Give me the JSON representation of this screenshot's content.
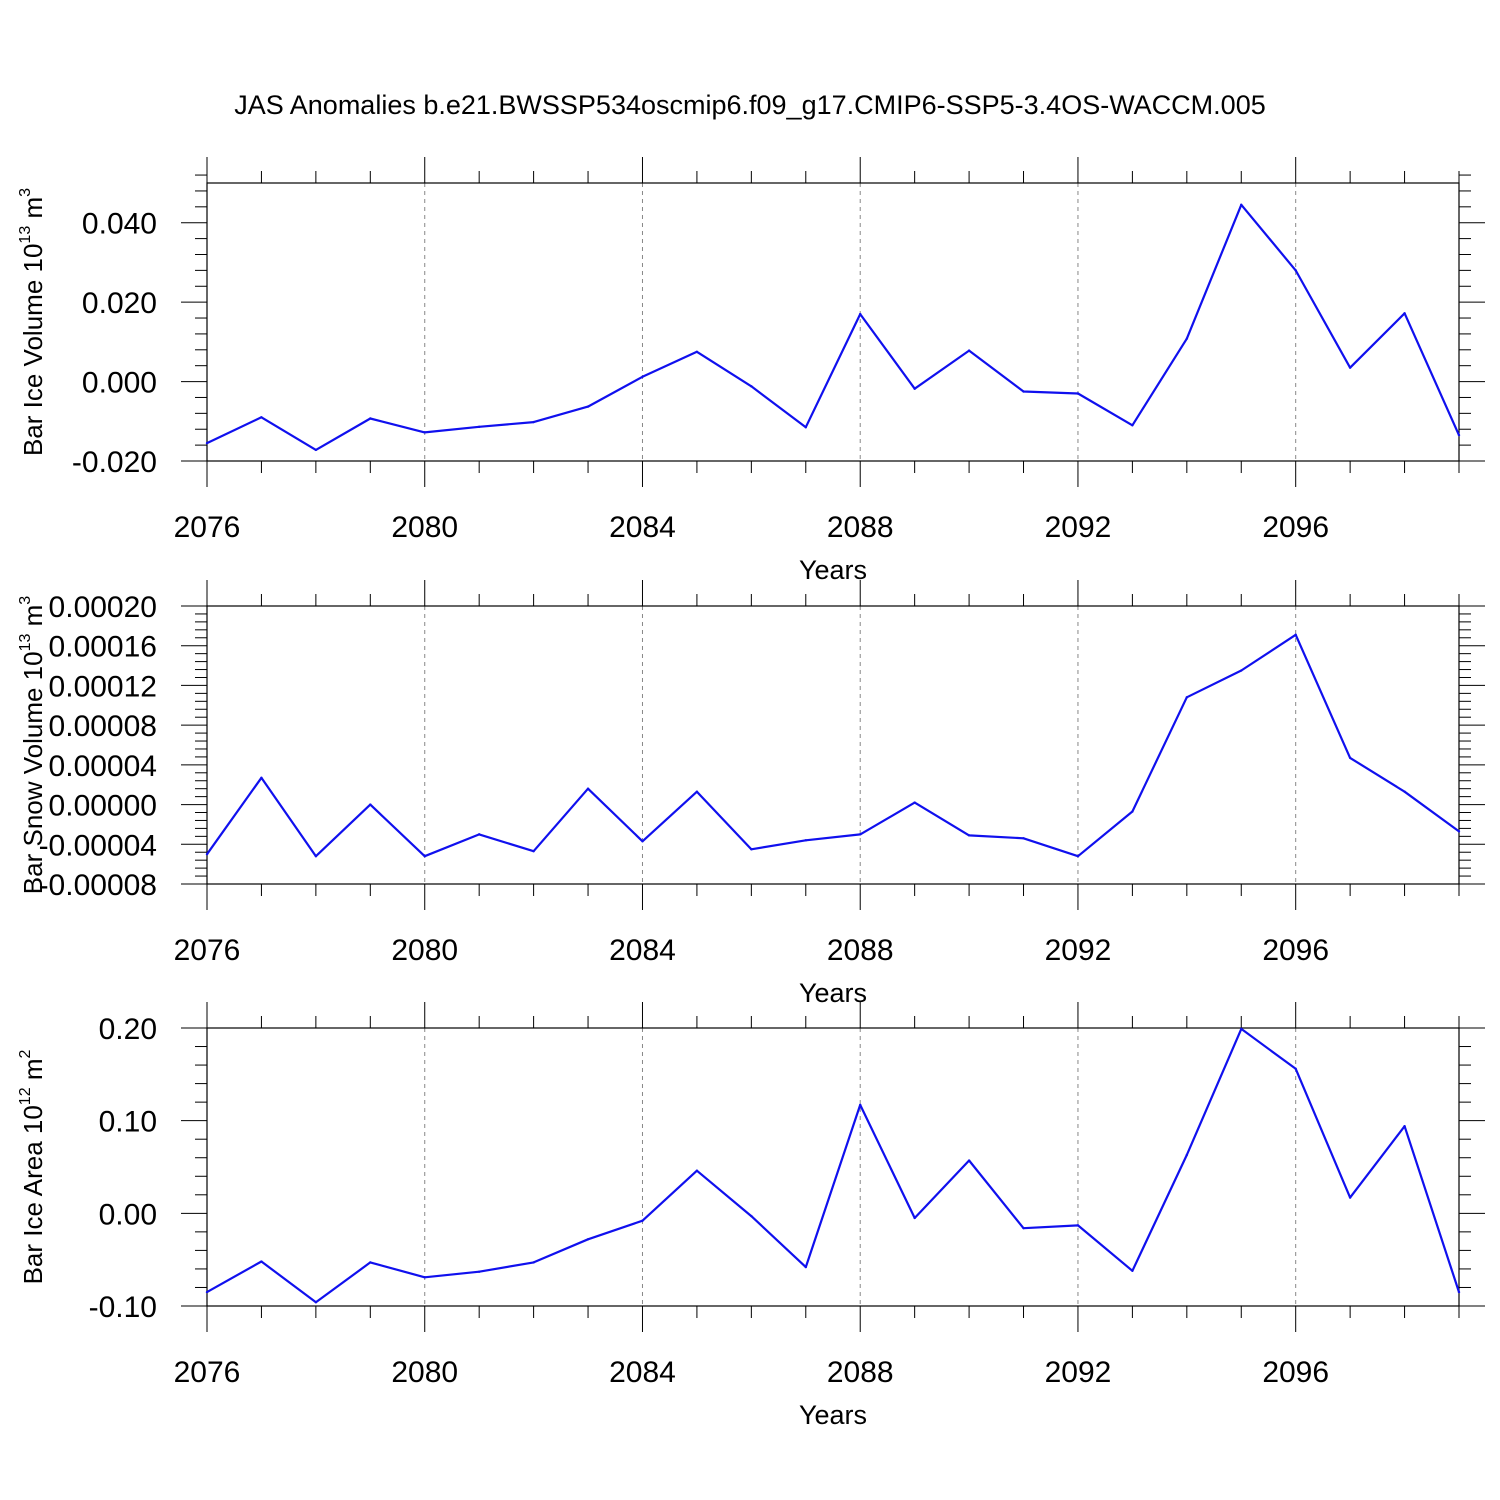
{
  "chart_data": {
    "title": "JAS Anomalies b.e21.BWSSP534oscmip6.f09_g17.CMIP6-SSP5-3.4OS-WACCM.005",
    "line_color": "#1010ee",
    "x": [
      2076,
      2077,
      2078,
      2079,
      2080,
      2081,
      2082,
      2083,
      2084,
      2085,
      2086,
      2087,
      2088,
      2089,
      2090,
      2091,
      2092,
      2093,
      2094,
      2095,
      2096,
      2097,
      2098,
      2099
    ],
    "panels": [
      {
        "type": "line",
        "ylabel": "Bar Ice Volume 10",
        "ylabel_exponent": "13",
        "ylabel_unit": "m",
        "ylabel_unit_exponent": "3",
        "xlabel": "Years",
        "xlim": [
          2076,
          2099
        ],
        "ylim": [
          -0.02,
          0.05
        ],
        "yticks": [
          -0.02,
          0.0,
          0.02,
          0.04
        ],
        "ytick_labels": [
          "-0.020",
          "0.000",
          "0.020",
          "0.040"
        ],
        "xticks": [
          2076,
          2080,
          2084,
          2088,
          2092,
          2096
        ],
        "xtick_labels": [
          "2076",
          "2080",
          "2084",
          "2088",
          "2092",
          "2096"
        ],
        "values": [
          -0.0155,
          -0.009,
          -0.0172,
          -0.0093,
          -0.0128,
          -0.0114,
          -0.0102,
          -0.0063,
          0.0012,
          0.0075,
          -0.0012,
          -0.0115,
          0.017,
          -0.0018,
          0.0078,
          -0.0025,
          -0.003,
          -0.011,
          0.0108,
          0.0445,
          0.028,
          0.0035,
          0.0172,
          -0.0135
        ]
      },
      {
        "type": "line",
        "ylabel": "Bar Snow Volume 10",
        "ylabel_exponent": "13",
        "ylabel_unit": "m",
        "ylabel_unit_exponent": "3",
        "xlabel": "Years",
        "xlim": [
          2076,
          2099
        ],
        "ylim": [
          -8e-05,
          0.0002
        ],
        "yticks": [
          -8e-05,
          -4e-05,
          0.0,
          4e-05,
          8e-05,
          0.00012,
          0.00016,
          0.0002
        ],
        "ytick_labels": [
          "-0.00008",
          "-0.00004",
          "0.00000",
          "0.00004",
          "0.00008",
          "0.00012",
          "0.00016",
          "0.00020"
        ],
        "xticks": [
          2076,
          2080,
          2084,
          2088,
          2092,
          2096
        ],
        "xtick_labels": [
          "2076",
          "2080",
          "2084",
          "2088",
          "2092",
          "2096"
        ],
        "values": [
          -5e-05,
          2.7e-05,
          -5.2e-05,
          0.0,
          -5.2e-05,
          -3e-05,
          -4.7e-05,
          1.6e-05,
          -3.7e-05,
          1.3e-05,
          -4.5e-05,
          -3.6e-05,
          -3e-05,
          2e-06,
          -3.1e-05,
          -3.4e-05,
          -5.2e-05,
          -7e-06,
          0.000108,
          0.000135,
          0.000171,
          4.7e-05,
          1.3e-05,
          -2.7e-05
        ]
      },
      {
        "type": "line",
        "ylabel": "Bar Ice Area 10",
        "ylabel_exponent": "12",
        "ylabel_unit": "m",
        "ylabel_unit_exponent": "2",
        "xlabel": "Years",
        "xlim": [
          2076,
          2099
        ],
        "ylim": [
          -0.1,
          0.2
        ],
        "yticks": [
          -0.1,
          0.0,
          0.1,
          0.2
        ],
        "ytick_labels": [
          "-0.10",
          "0.00",
          "0.10",
          "0.20"
        ],
        "xticks": [
          2076,
          2080,
          2084,
          2088,
          2092,
          2096
        ],
        "xtick_labels": [
          "2076",
          "2080",
          "2084",
          "2088",
          "2092",
          "2096"
        ],
        "values": [
          -0.085,
          -0.052,
          -0.096,
          -0.053,
          -0.069,
          -0.063,
          -0.053,
          -0.028,
          -0.008,
          0.046,
          -0.003,
          -0.058,
          0.117,
          -0.005,
          0.057,
          -0.016,
          -0.013,
          -0.062,
          0.063,
          0.199,
          0.156,
          0.017,
          0.094,
          -0.085
        ]
      }
    ]
  }
}
